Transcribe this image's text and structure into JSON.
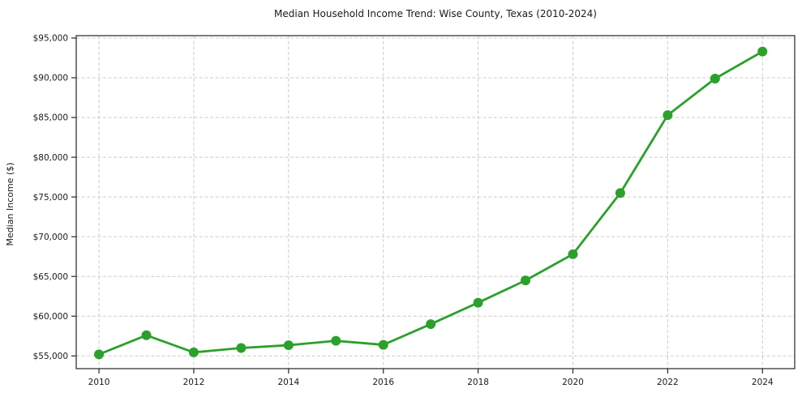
{
  "chart_data": {
    "type": "line",
    "title": "Median Household Income Trend: Wise County, Texas (2010-2024)",
    "xlabel": "",
    "ylabel": "Median Income ($)",
    "x": [
      2010,
      2011,
      2012,
      2013,
      2014,
      2015,
      2016,
      2017,
      2018,
      2019,
      2020,
      2021,
      2022,
      2023,
      2024
    ],
    "series": [
      {
        "name": "Median Household Income",
        "values": [
          55200,
          57600,
          55450,
          56000,
          56350,
          56900,
          56400,
          59000,
          61700,
          64500,
          67800,
          75500,
          85300,
          89900,
          93300
        ]
      }
    ],
    "x_tick_years": [
      2010,
      2012,
      2014,
      2016,
      2018,
      2020,
      2022,
      2024
    ],
    "x_tick_labels": [
      "2010",
      "2012",
      "2014",
      "2016",
      "2018",
      "2020",
      "2022",
      "2024"
    ],
    "y_ticks": [
      55000,
      60000,
      65000,
      70000,
      75000,
      80000,
      85000,
      90000,
      95000
    ],
    "y_tick_labels": [
      "$55,000",
      "$60,000",
      "$65,000",
      "$70,000",
      "$75,000",
      "$80,000",
      "$85,000",
      "$90,000",
      "$95,000"
    ],
    "xlim": [
      2009.52,
      2024.68
    ],
    "ylim": [
      53400,
      95300
    ],
    "grid": "dashed-both-axes",
    "legend": "none",
    "line_color": "#2ca02c",
    "marker": "circle",
    "marker_color": "#2ca02c",
    "grid_color": "#cccccc",
    "axis_color": "#262626",
    "text_color": "#1a1a1a",
    "background": "#ffffff"
  }
}
